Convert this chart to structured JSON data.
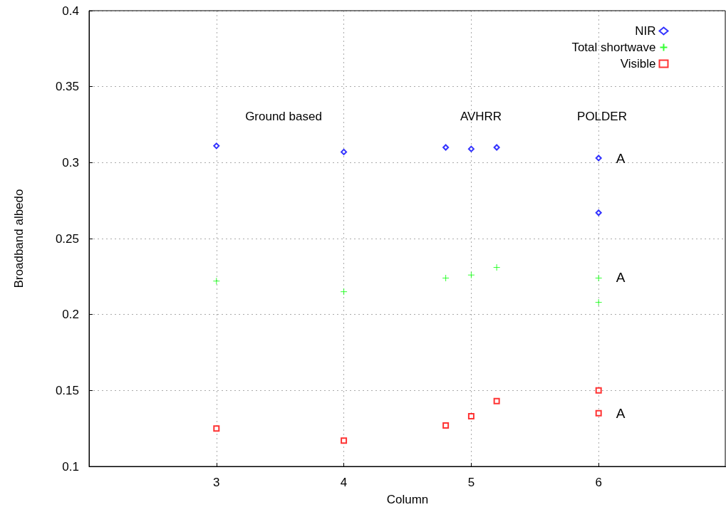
{
  "chart_data": {
    "type": "scatter",
    "xlabel": "Column",
    "ylabel": "Broadband albedo",
    "xlim": [
      2,
      7
    ],
    "xticks": [
      3,
      4,
      5,
      6
    ],
    "ylim": [
      0.1,
      0.4
    ],
    "yticks": [
      0.1,
      0.15,
      0.2,
      0.25,
      0.3,
      0.35,
      0.4
    ],
    "grid": true,
    "legend": "top right",
    "series": [
      {
        "name": "NIR",
        "color": "#0000ff",
        "marker": "diamond",
        "x": [
          3,
          4,
          4.8,
          5,
          5.2,
          6,
          6
        ],
        "values": [
          0.311,
          0.307,
          0.31,
          0.309,
          0.31,
          0.303,
          0.267
        ]
      },
      {
        "name": "Total shortwave",
        "color": "#00ff00",
        "marker": "cross",
        "x": [
          3,
          4,
          4.8,
          5,
          5.2,
          6,
          6
        ],
        "values": [
          0.222,
          0.215,
          0.224,
          0.226,
          0.231,
          0.224,
          0.208
        ]
      },
      {
        "name": "Visible",
        "color": "#ff0000",
        "marker": "square",
        "x": [
          3,
          4,
          4.8,
          5,
          5.2,
          6,
          6
        ],
        "values": [
          0.125,
          0.117,
          0.127,
          0.133,
          0.143,
          0.15,
          0.135
        ]
      }
    ],
    "annotations": [
      "Ground based",
      "AVHRR",
      "POLDER",
      "A",
      "A",
      "A"
    ]
  }
}
